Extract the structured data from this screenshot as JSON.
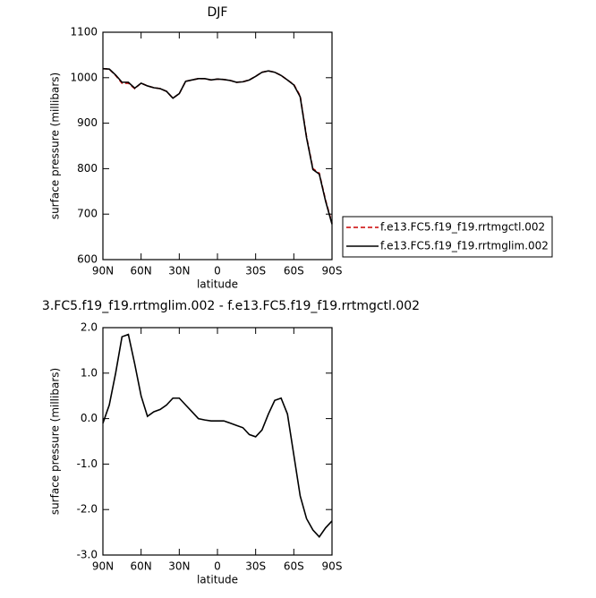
{
  "chart_data": [
    {
      "type": "line",
      "title": "DJF",
      "xlabel": "latitude",
      "ylabel": "surface pressure (millibars)",
      "x": [
        90,
        85,
        80,
        75,
        70,
        65,
        60,
        55,
        50,
        45,
        40,
        35,
        30,
        25,
        20,
        15,
        10,
        5,
        0,
        -5,
        -10,
        -15,
        -20,
        -25,
        -30,
        -35,
        -40,
        -45,
        -50,
        -55,
        -60,
        -65,
        -70,
        -75,
        -80,
        -85,
        -90
      ],
      "xlim": [
        90,
        -90
      ],
      "xticks": [
        {
          "value": 90,
          "label": "90N"
        },
        {
          "value": 60,
          "label": "60N"
        },
        {
          "value": 30,
          "label": "30N"
        },
        0,
        {
          "value": -30,
          "label": "30S"
        },
        {
          "value": -60,
          "label": "60S"
        },
        {
          "value": -90,
          "label": "90S"
        }
      ],
      "ylim": [
        600,
        1100
      ],
      "yticks": [
        600,
        700,
        800,
        900,
        1000,
        1100
      ],
      "legend": "right",
      "series": [
        {
          "name": "f.e13.FC5.f19_f19.rrtmgctl.002",
          "color": "#cc0000",
          "linestyle": "dashed",
          "values": [
            1020,
            1019,
            1005,
            988,
            988,
            976,
            988,
            982,
            978,
            976,
            970,
            955,
            965,
            992,
            995,
            998,
            998,
            995,
            997,
            996,
            994,
            990,
            991,
            995,
            1003,
            1012,
            1015,
            1012,
            1005,
            995,
            985,
            960,
            870,
            800,
            790,
            730,
            680
          ]
        },
        {
          "name": "f.e13.FC5.f19_f19.rrtmglim.002",
          "color": "#000000",
          "linestyle": "solid",
          "values": [
            1020,
            1019,
            1006,
            990,
            990,
            977,
            988,
            982,
            978,
            976,
            970,
            955,
            965,
            992,
            995,
            998,
            998,
            995,
            997,
            996,
            994,
            990,
            991,
            995,
            1003,
            1012,
            1015,
            1012,
            1005,
            995,
            984,
            958,
            868,
            798,
            788,
            728,
            678
          ]
        }
      ]
    },
    {
      "type": "line",
      "title": "3.FC5.f19_f19.rrtmglim.002 - f.e13.FC5.f19_f19.rrtmgctl.002",
      "xlabel": "latitude",
      "ylabel": "surface pressure (millibars)",
      "x": [
        90,
        85,
        80,
        75,
        70,
        65,
        60,
        55,
        50,
        45,
        40,
        35,
        30,
        25,
        20,
        15,
        10,
        5,
        0,
        -5,
        -10,
        -15,
        -20,
        -25,
        -30,
        -35,
        -40,
        -45,
        -50,
        -55,
        -60,
        -65,
        -70,
        -75,
        -80,
        -85,
        -90
      ],
      "xlim": [
        90,
        -90
      ],
      "xticks": [
        {
          "value": 90,
          "label": "90N"
        },
        {
          "value": 60,
          "label": "60N"
        },
        {
          "value": 30,
          "label": "30N"
        },
        0,
        {
          "value": -30,
          "label": "30S"
        },
        {
          "value": -60,
          "label": "60S"
        },
        {
          "value": -90,
          "label": "90S"
        }
      ],
      "ylim": [
        -3,
        2
      ],
      "yticks": [
        {
          "value": -3,
          "label": "-3.0"
        },
        {
          "value": -2,
          "label": "-2.0"
        },
        {
          "value": -1,
          "label": "-1.0"
        },
        {
          "value": 0,
          "label": "0.0"
        },
        {
          "value": 1,
          "label": "1.0"
        },
        {
          "value": 2,
          "label": "2.0"
        }
      ],
      "series": [
        {
          "color": "#000000",
          "linestyle": "solid",
          "values": [
            -0.1,
            0.3,
            1.0,
            1.8,
            1.85,
            1.2,
            0.5,
            0.05,
            0.15,
            0.2,
            0.3,
            0.45,
            0.45,
            0.3,
            0.15,
            0.0,
            -0.03,
            -0.05,
            -0.05,
            -0.05,
            -0.1,
            -0.15,
            -0.2,
            -0.35,
            -0.4,
            -0.25,
            0.1,
            0.4,
            0.45,
            0.1,
            -0.8,
            -1.7,
            -2.2,
            -2.45,
            -2.6,
            -2.4,
            -2.25
          ]
        }
      ]
    }
  ]
}
